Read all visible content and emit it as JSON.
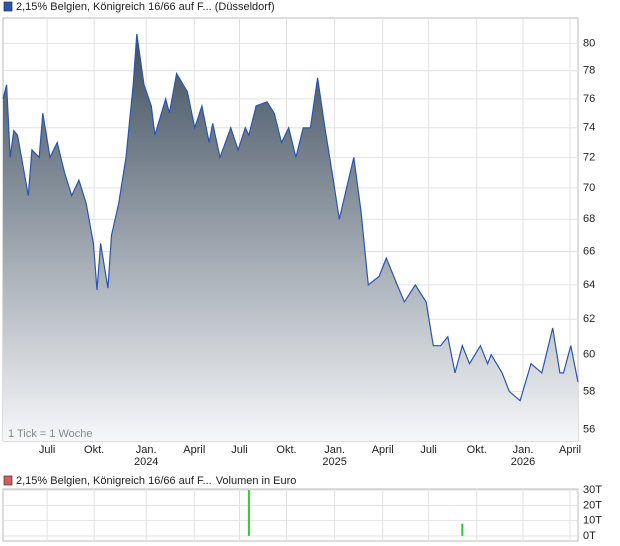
{
  "chart_data": [
    {
      "type": "line",
      "series": [
        {
          "name": "2,15% Belgien, Königreich 16/66 auf F... (Düsseldorf)",
          "color": "#2b55b0",
          "x": [
            0,
            1,
            2,
            3,
            4,
            7,
            8,
            10,
            11,
            13,
            15,
            17,
            19,
            21,
            23,
            25,
            26,
            27,
            29,
            30,
            32,
            34,
            36,
            37,
            39,
            41,
            42,
            45,
            46,
            48,
            51,
            53,
            55,
            57,
            58,
            60,
            63,
            65,
            67,
            68,
            70,
            73,
            75,
            77,
            79,
            81,
            83,
            85,
            87,
            89,
            91,
            93,
            95,
            97,
            99,
            101,
            104,
            106,
            109,
            111,
            114,
            117,
            119,
            121,
            123,
            125,
            127,
            129,
            132,
            134,
            135,
            138,
            140,
            143,
            146,
            149,
            152,
            154,
            155,
            157,
            159
          ],
          "values": [
            76,
            77,
            72,
            73.8,
            73.5,
            69.5,
            72.5,
            72,
            75,
            72,
            73,
            71,
            69.5,
            70.5,
            69,
            66.5,
            63.7,
            66.5,
            63.8,
            67,
            69,
            72,
            77,
            80.7,
            77,
            75.5,
            73.5,
            76,
            75,
            77.8,
            76.5,
            74,
            75.5,
            73,
            74.3,
            72,
            74,
            72.5,
            74,
            73.5,
            75.5,
            75.8,
            75,
            73,
            74,
            72,
            74,
            74,
            77.5,
            74,
            71,
            68,
            70,
            72,
            68.5,
            64,
            64.5,
            65.6,
            64,
            63,
            64,
            63,
            60.5,
            60.5,
            61,
            59,
            60.5,
            59.5,
            60.5,
            59.5,
            60,
            59,
            58,
            57.5,
            59.5,
            59,
            61.5,
            59,
            59,
            60.5,
            58.5
          ]
        }
      ],
      "log_scale": true,
      "xlim": [
        0,
        159
      ],
      "xticks": [
        {
          "value": 12.2,
          "label": "Juli"
        },
        {
          "value": 25.2,
          "label": "Okt."
        },
        {
          "value": 39.6,
          "label": "Jan.",
          "year": "2024"
        },
        {
          "value": 52.9,
          "label": "April"
        },
        {
          "value": 65.4,
          "label": "Juli"
        },
        {
          "value": 78.4,
          "label": "Okt."
        },
        {
          "value": 91.7,
          "label": "Jan.",
          "year": "2025"
        },
        {
          "value": 105,
          "label": "April"
        },
        {
          "value": 117.7,
          "label": "Juli"
        },
        {
          "value": 131,
          "label": "Okt."
        },
        {
          "value": 143.8,
          "label": "Jan.",
          "year": "2026"
        },
        {
          "value": 156.8,
          "label": "April"
        }
      ],
      "ylim": [
        55.4,
        81.9
      ],
      "yticks": [
        56,
        58,
        60,
        62,
        64,
        66,
        68,
        70,
        72,
        74,
        76,
        78,
        80
      ],
      "grid": true,
      "annotation": "1 Tick = 1 Woche"
    },
    {
      "type": "bar",
      "series": [
        {
          "name": "2,15% Belgien, Königreich 16/66 auf F...",
          "color": "#33cc33",
          "legend_color": "#d06060",
          "x": [
            68,
            127
          ],
          "values": [
            30,
            8
          ]
        }
      ],
      "ylabel": "Volumen in Euro",
      "xlim": [
        0,
        159
      ],
      "ylim": [
        -3.3,
        30.7
      ],
      "yticks": [
        {
          "value": 0,
          "label": "0T"
        },
        {
          "value": 10,
          "label": "10T"
        },
        {
          "value": 20,
          "label": "20T"
        },
        {
          "value": 30,
          "label": "30T"
        }
      ],
      "grid": true
    }
  ]
}
